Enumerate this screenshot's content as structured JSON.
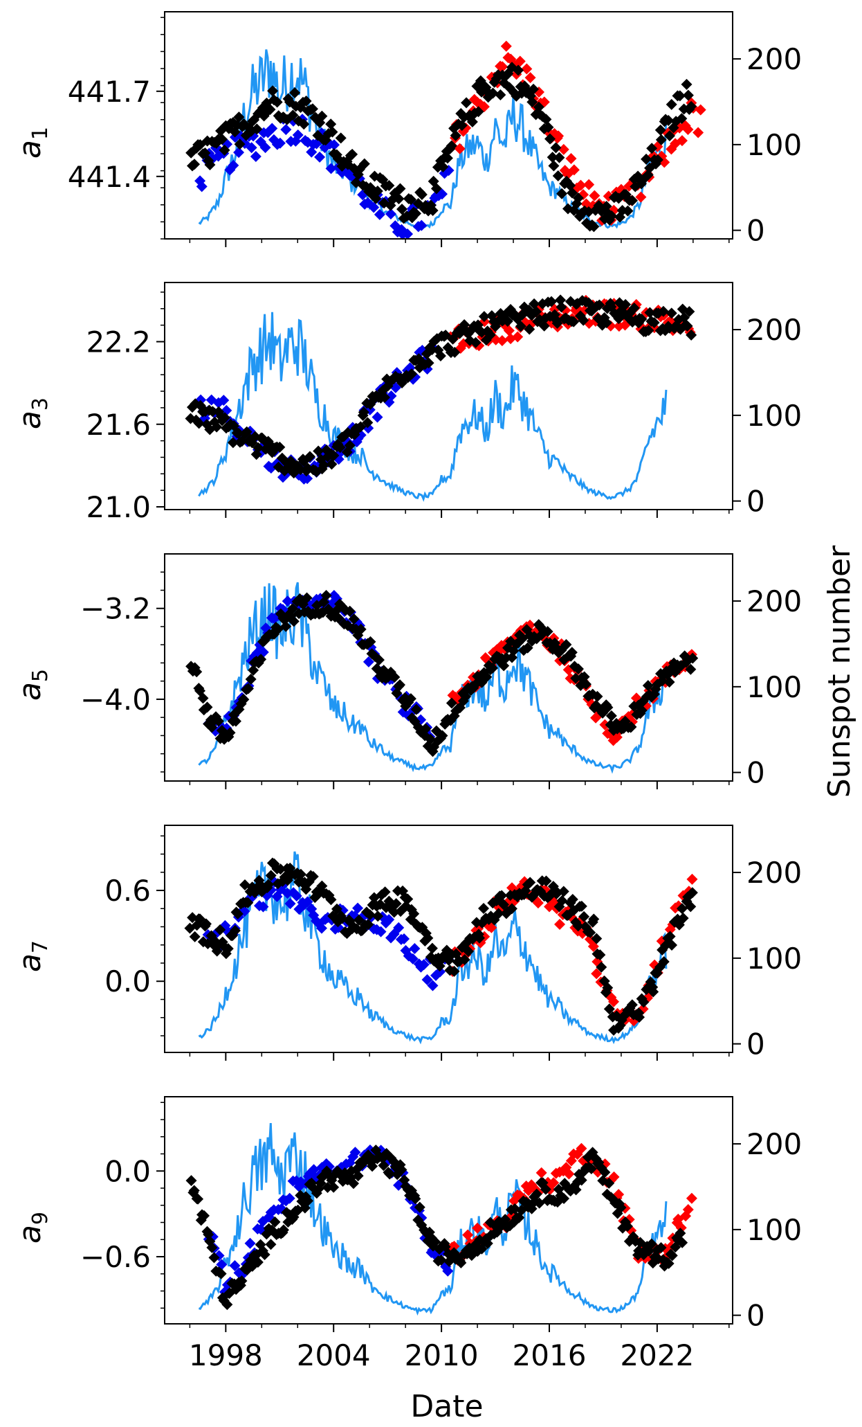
{
  "figure": {
    "xlabel": "Date",
    "right_ylabel": "Sunspot number",
    "x_ticks": [
      "1998",
      "2004",
      "2010",
      "2016",
      "2022"
    ],
    "x_tick_values": [
      1998,
      2004,
      2010,
      2016,
      2022
    ],
    "x_range": [
      1994.6,
      2026.2
    ],
    "right_ticks": [
      "0",
      "100",
      "200"
    ],
    "right_tick_values": [
      0,
      100,
      200
    ],
    "right_range": [
      -10,
      255
    ],
    "colors": {
      "black_series": "#000000",
      "blue_series": "#0000ee",
      "red_series": "#ff0000",
      "sunspot_line": "#2196f3"
    }
  },
  "chart_data": [
    {
      "type": "scatter",
      "ylabel_base": "a",
      "ylabel_sub": "1",
      "yticks": [
        "441.4",
        "441.7"
      ],
      "ytick_values": [
        441.4,
        441.7
      ],
      "ylim": [
        441.18,
        441.98
      ],
      "anchors": {
        "black": [
          [
            1996.0,
            441.45
          ],
          [
            1997.5,
            441.5
          ],
          [
            1999.0,
            441.58
          ],
          [
            2000.5,
            441.66
          ],
          [
            2002.0,
            441.65
          ],
          [
            2003.5,
            441.58
          ],
          [
            2005.0,
            441.43
          ],
          [
            2006.5,
            441.35
          ],
          [
            2008.0,
            441.3
          ],
          [
            2009.5,
            441.33
          ],
          [
            2011.0,
            441.57
          ],
          [
            2012.5,
            441.72
          ],
          [
            2014.0,
            441.75
          ],
          [
            2015.5,
            441.63
          ],
          [
            2017.0,
            441.33
          ],
          [
            2018.5,
            441.27
          ],
          [
            2020.0,
            441.28
          ],
          [
            2021.5,
            441.42
          ],
          [
            2023.0,
            441.63
          ],
          [
            2024.0,
            441.7
          ]
        ],
        "blue": [
          [
            1996.5,
            441.4
          ],
          [
            1997.5,
            441.45
          ],
          [
            1999.0,
            441.5
          ],
          [
            2000.5,
            441.55
          ],
          [
            2002.0,
            441.58
          ],
          [
            2003.5,
            441.5
          ],
          [
            2005.0,
            441.4
          ],
          [
            2006.5,
            441.28
          ],
          [
            2008.0,
            441.23
          ],
          [
            2009.5,
            441.28
          ],
          [
            2010.5,
            441.4
          ]
        ],
        "red": [
          [
            2010.5,
            441.5
          ],
          [
            2012.0,
            441.65
          ],
          [
            2013.5,
            441.82
          ],
          [
            2015.0,
            441.73
          ],
          [
            2016.5,
            441.5
          ],
          [
            2018.0,
            441.33
          ],
          [
            2019.5,
            441.28
          ],
          [
            2021.0,
            441.35
          ],
          [
            2022.5,
            441.5
          ],
          [
            2024.0,
            441.62
          ],
          [
            2024.5,
            441.58
          ]
        ]
      },
      "spread": 0.055
    },
    {
      "type": "scatter",
      "ylabel_base": "a",
      "ylabel_sub": "3",
      "yticks": [
        "21.0",
        "21.6",
        "22.2"
      ],
      "ytick_values": [
        21.0,
        21.6,
        22.2
      ],
      "ylim": [
        20.98,
        22.63
      ],
      "anchors": {
        "black": [
          [
            1996.0,
            21.68
          ],
          [
            1997.5,
            21.62
          ],
          [
            1999.0,
            21.5
          ],
          [
            2000.5,
            21.4
          ],
          [
            2002.0,
            21.3
          ],
          [
            2003.5,
            21.32
          ],
          [
            2005.0,
            21.5
          ],
          [
            2006.5,
            21.8
          ],
          [
            2008.0,
            22.0
          ],
          [
            2009.5,
            22.15
          ],
          [
            2011.0,
            22.22
          ],
          [
            2012.5,
            22.3
          ],
          [
            2014.0,
            22.35
          ],
          [
            2015.5,
            22.4
          ],
          [
            2017.0,
            22.42
          ],
          [
            2018.5,
            22.4
          ],
          [
            2020.0,
            22.4
          ],
          [
            2021.5,
            22.35
          ],
          [
            2023.0,
            22.38
          ],
          [
            2024.0,
            22.32
          ]
        ],
        "blue": [
          [
            1996.5,
            21.72
          ],
          [
            1997.5,
            21.75
          ],
          [
            1999.0,
            21.55
          ],
          [
            2000.5,
            21.35
          ],
          [
            2002.0,
            21.25
          ],
          [
            2003.5,
            21.35
          ],
          [
            2005.0,
            21.5
          ],
          [
            2006.5,
            21.75
          ],
          [
            2008.0,
            21.95
          ],
          [
            2009.5,
            22.12
          ]
        ],
        "red": [
          [
            2010.5,
            22.2
          ],
          [
            2012.0,
            22.25
          ],
          [
            2013.5,
            22.3
          ],
          [
            2015.0,
            22.35
          ],
          [
            2016.5,
            22.38
          ],
          [
            2018.0,
            22.42
          ],
          [
            2019.5,
            22.4
          ],
          [
            2021.0,
            22.38
          ],
          [
            2022.5,
            22.35
          ],
          [
            2024.0,
            22.3
          ]
        ]
      },
      "spread": 0.09
    },
    {
      "type": "scatter",
      "ylabel_base": "a",
      "ylabel_sub": "5",
      "yticks": [
        "−4.0",
        "−3.2"
      ],
      "ytick_values": [
        -4.0,
        -3.2
      ],
      "ylim": [
        -4.72,
        -2.72
      ],
      "anchors": {
        "black": [
          [
            1996.0,
            -3.6
          ],
          [
            1997.0,
            -4.15
          ],
          [
            1998.0,
            -4.35
          ],
          [
            1999.0,
            -4.0
          ],
          [
            2000.5,
            -3.4
          ],
          [
            2002.0,
            -3.2
          ],
          [
            2003.5,
            -3.15
          ],
          [
            2005.0,
            -3.3
          ],
          [
            2006.5,
            -3.7
          ],
          [
            2008.0,
            -4.0
          ],
          [
            2009.5,
            -4.4
          ],
          [
            2011.0,
            -4.0
          ],
          [
            2012.5,
            -3.75
          ],
          [
            2014.0,
            -3.55
          ],
          [
            2015.5,
            -3.4
          ],
          [
            2017.0,
            -3.6
          ],
          [
            2018.5,
            -4.0
          ],
          [
            2020.0,
            -4.3
          ],
          [
            2021.5,
            -3.95
          ],
          [
            2023.0,
            -3.75
          ],
          [
            2024.0,
            -3.65
          ]
        ],
        "blue": [
          [
            1997.0,
            -4.2
          ],
          [
            1998.0,
            -4.3
          ],
          [
            1999.0,
            -3.9
          ],
          [
            2000.5,
            -3.35
          ],
          [
            2002.0,
            -3.15
          ],
          [
            2003.5,
            -3.1
          ],
          [
            2005.0,
            -3.3
          ],
          [
            2006.5,
            -3.75
          ],
          [
            2008.0,
            -4.05
          ],
          [
            2009.5,
            -4.3
          ]
        ],
        "red": [
          [
            2010.5,
            -4.05
          ],
          [
            2012.0,
            -3.8
          ],
          [
            2013.5,
            -3.55
          ],
          [
            2015.0,
            -3.35
          ],
          [
            2016.5,
            -3.55
          ],
          [
            2018.0,
            -3.95
          ],
          [
            2019.5,
            -4.3
          ],
          [
            2021.0,
            -4.05
          ],
          [
            2022.5,
            -3.8
          ],
          [
            2024.0,
            -3.6
          ]
        ]
      },
      "spread": 0.09
    },
    {
      "type": "scatter",
      "ylabel_base": "a",
      "ylabel_sub": "7",
      "yticks": [
        "0.0",
        "0.6"
      ],
      "ytick_values": [
        0.0,
        0.6
      ],
      "ylim": [
        -0.47,
        1.03
      ],
      "anchors": {
        "black": [
          [
            1996.0,
            0.4
          ],
          [
            1997.0,
            0.3
          ],
          [
            1998.0,
            0.25
          ],
          [
            1999.0,
            0.55
          ],
          [
            2000.5,
            0.7
          ],
          [
            2002.0,
            0.72
          ],
          [
            2003.5,
            0.55
          ],
          [
            2005.0,
            0.35
          ],
          [
            2006.5,
            0.5
          ],
          [
            2008.0,
            0.55
          ],
          [
            2009.5,
            0.2
          ],
          [
            2011.0,
            0.12
          ],
          [
            2012.5,
            0.45
          ],
          [
            2014.0,
            0.55
          ],
          [
            2015.5,
            0.62
          ],
          [
            2017.0,
            0.5
          ],
          [
            2018.5,
            0.35
          ],
          [
            2019.5,
            -0.25
          ],
          [
            2021.0,
            -0.22
          ],
          [
            2022.5,
            0.2
          ],
          [
            2023.5,
            0.5
          ],
          [
            2024.0,
            0.6
          ]
        ],
        "blue": [
          [
            1997.0,
            0.25
          ],
          [
            1998.0,
            0.3
          ],
          [
            1999.0,
            0.5
          ],
          [
            2000.5,
            0.6
          ],
          [
            2002.0,
            0.55
          ],
          [
            2003.5,
            0.35
          ],
          [
            2005.0,
            0.45
          ],
          [
            2006.5,
            0.4
          ],
          [
            2008.0,
            0.25
          ],
          [
            2009.5,
            0.05
          ],
          [
            2010.5,
            0.12
          ]
        ],
        "red": [
          [
            2010.5,
            0.08
          ],
          [
            2012.0,
            0.3
          ],
          [
            2013.5,
            0.55
          ],
          [
            2015.0,
            0.62
          ],
          [
            2016.5,
            0.45
          ],
          [
            2018.0,
            0.35
          ],
          [
            2019.5,
            -0.2
          ],
          [
            2021.0,
            -0.25
          ],
          [
            2022.5,
            0.3
          ],
          [
            2024.0,
            0.62
          ]
        ]
      },
      "spread": 0.08
    },
    {
      "type": "scatter",
      "ylabel_base": "a",
      "ylabel_sub": "9",
      "yticks": [
        "−0.6",
        "0.0"
      ],
      "ytick_values": [
        -0.6,
        0.0
      ],
      "ylim": [
        -1.07,
        0.52
      ],
      "anchors": {
        "black": [
          [
            1996.0,
            -0.05
          ],
          [
            1997.0,
            -0.45
          ],
          [
            1998.0,
            -0.9
          ],
          [
            1999.0,
            -0.75
          ],
          [
            2000.5,
            -0.45
          ],
          [
            2002.0,
            -0.25
          ],
          [
            2003.5,
            -0.05
          ],
          [
            2005.0,
            -0.05
          ],
          [
            2006.5,
            0.1
          ],
          [
            2008.0,
            -0.05
          ],
          [
            2009.5,
            -0.55
          ],
          [
            2011.0,
            -0.6
          ],
          [
            2012.5,
            -0.45
          ],
          [
            2014.0,
            -0.3
          ],
          [
            2015.5,
            -0.15
          ],
          [
            2017.0,
            -0.15
          ],
          [
            2018.5,
            0.1
          ],
          [
            2019.5,
            -0.2
          ],
          [
            2021.0,
            -0.55
          ],
          [
            2022.5,
            -0.6
          ],
          [
            2023.5,
            -0.45
          ]
        ],
        "blue": [
          [
            1997.0,
            -0.4
          ],
          [
            1998.0,
            -0.8
          ],
          [
            1999.0,
            -0.65
          ],
          [
            2000.5,
            -0.3
          ],
          [
            2002.0,
            -0.1
          ],
          [
            2003.5,
            0.0
          ],
          [
            2005.0,
            0.05
          ],
          [
            2006.5,
            0.15
          ],
          [
            2008.0,
            -0.1
          ],
          [
            2009.5,
            -0.55
          ],
          [
            2010.5,
            -0.65
          ]
        ],
        "red": [
          [
            2010.5,
            -0.6
          ],
          [
            2012.0,
            -0.45
          ],
          [
            2013.5,
            -0.35
          ],
          [
            2015.0,
            -0.1
          ],
          [
            2016.5,
            -0.05
          ],
          [
            2018.0,
            0.15
          ],
          [
            2019.5,
            -0.05
          ],
          [
            2021.0,
            -0.6
          ],
          [
            2022.5,
            -0.55
          ],
          [
            2024.0,
            -0.2
          ]
        ]
      },
      "spread": 0.07
    }
  ],
  "sunspot_series": {
    "name": "Sunspot number",
    "x": [
      1996.5,
      1997.0,
      1997.5,
      1998.0,
      1998.5,
      1999.0,
      1999.5,
      2000.0,
      2000.5,
      2001.0,
      2001.5,
      2002.0,
      2002.5,
      2003.0,
      2003.5,
      2004.0,
      2004.5,
      2005.0,
      2005.5,
      2006.0,
      2006.5,
      2007.0,
      2007.5,
      2008.0,
      2008.5,
      2009.0,
      2009.5,
      2010.0,
      2010.5,
      2011.0,
      2011.5,
      2012.0,
      2012.5,
      2013.0,
      2013.5,
      2014.0,
      2014.5,
      2015.0,
      2015.5,
      2016.0,
      2016.5,
      2017.0,
      2017.5,
      2018.0,
      2018.5,
      2019.0,
      2019.5,
      2020.0,
      2020.5,
      2021.0,
      2021.5,
      2022.0,
      2022.5
    ],
    "values": [
      8,
      15,
      30,
      60,
      90,
      130,
      160,
      175,
      190,
      160,
      180,
      185,
      160,
      120,
      100,
      75,
      70,
      55,
      55,
      35,
      30,
      20,
      15,
      10,
      6,
      5,
      7,
      25,
      30,
      80,
      95,
      100,
      80,
      120,
      100,
      135,
      120,
      95,
      70,
      50,
      45,
      30,
      25,
      15,
      10,
      7,
      5,
      8,
      15,
      30,
      70,
      90,
      110
    ]
  }
}
